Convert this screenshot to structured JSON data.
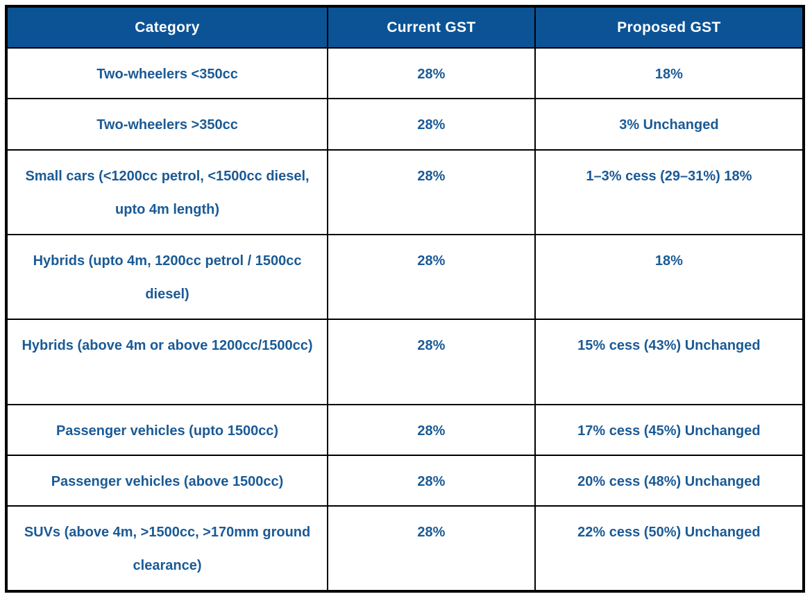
{
  "chart_data": {
    "type": "table",
    "title": "",
    "columns": [
      "Category",
      "Current GST",
      "Proposed GST"
    ],
    "rows": [
      {
        "category": "Two-wheelers <350cc",
        "current": "28%",
        "proposed": "18%"
      },
      {
        "category": "Two-wheelers >350cc",
        "current": "28%",
        "proposed": "3% Unchanged"
      },
      {
        "category": "Small cars (<1200cc petrol, <1500cc diesel, upto 4m length)",
        "current": "28%",
        "proposed": "1–3% cess (29–31%) 18%"
      },
      {
        "category": "Hybrids (upto 4m, 1200cc petrol / 1500cc diesel)",
        "current": "28%",
        "proposed": "18%"
      },
      {
        "category": "Hybrids (above 4m or above 1200cc/1500cc)",
        "current": "28%",
        "proposed": "15% cess (43%) Unchanged"
      },
      {
        "category": "Passenger vehicles (upto 1500cc)",
        "current": "28%",
        "proposed": "17% cess (45%) Unchanged"
      },
      {
        "category": "Passenger vehicles (above 1500cc)",
        "current": "28%",
        "proposed": "20% cess (48%) Unchanged"
      },
      {
        "category": "SUVs (above 4m, >1500cc, >170mm ground clearance)",
        "current": "28%",
        "proposed": "22% cess (50%) Unchanged"
      }
    ],
    "layout": {
      "grid": "full black grid lines",
      "header_position": "top row"
    }
  },
  "table": {
    "columns": [
      {
        "label": "Category"
      },
      {
        "label": "Current GST"
      },
      {
        "label": "Proposed GST"
      }
    ],
    "rows": [
      {
        "category": "Two-wheelers <350cc",
        "current": "28%",
        "proposed": "18%"
      },
      {
        "category": "Two-wheelers >350cc",
        "current": "28%",
        "proposed": "3% Unchanged"
      },
      {
        "category": "Small cars (<1200cc petrol, <1500cc diesel, upto 4m length)",
        "current": "28%",
        "proposed": "1–3% cess (29–31%) 18%"
      },
      {
        "category": "Hybrids (upto 4m, 1200cc petrol / 1500cc diesel)",
        "current": "28%",
        "proposed": "18%"
      },
      {
        "category": "Hybrids (above 4m or above 1200cc/1500cc)",
        "current": "28%",
        "proposed": "15% cess (43%) Unchanged"
      },
      {
        "category": "Passenger vehicles (upto 1500cc)",
        "current": "28%",
        "proposed": "17% cess (45%) Unchanged"
      },
      {
        "category": "Passenger vehicles (above 1500cc)",
        "current": "28%",
        "proposed": "20% cess (48%) Unchanged"
      },
      {
        "category": "SUVs (above 4m, >1500cc, >170mm ground clearance)",
        "current": "28%",
        "proposed": "22% cess (50%) Unchanged"
      }
    ],
    "colors": {
      "header_bg": "#0b5394",
      "header_text": "#ffffff",
      "cell_text": "#1a5a96",
      "border": "#000000",
      "row_bg": "#ffffff"
    }
  }
}
